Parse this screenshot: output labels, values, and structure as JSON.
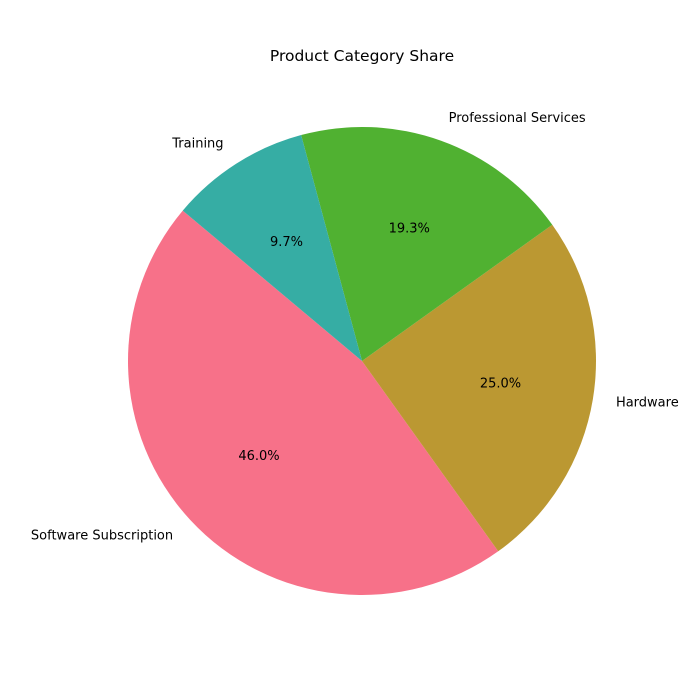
{
  "chart_data": {
    "type": "pie",
    "title": "Product Category Share",
    "start_angle_deg": 140,
    "direction": "counterclockwise",
    "slices": [
      {
        "label": "Software Subscription",
        "value": 46.0,
        "display": "46.0%",
        "color": "#f77189"
      },
      {
        "label": "Hardware",
        "value": 25.0,
        "display": "25.0%",
        "color": "#bb9832"
      },
      {
        "label": "Professional Services",
        "value": 19.3,
        "display": "19.3%",
        "color": "#50b131"
      },
      {
        "label": "Training",
        "value": 9.7,
        "display": "9.7%",
        "color": "#36ada4"
      }
    ]
  }
}
